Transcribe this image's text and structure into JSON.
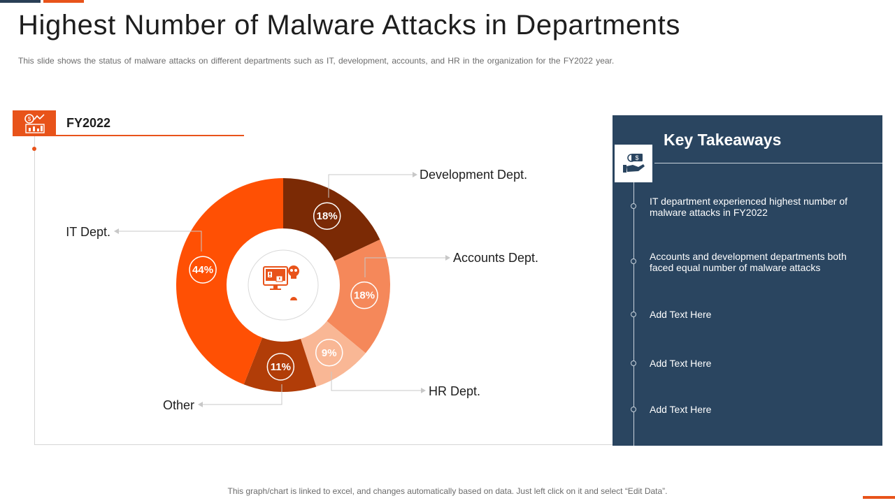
{
  "slide": {
    "title": "Highest Number of Malware Attacks in Departments",
    "subtitle": "This slide shows the status of malware attacks on different departments  such as IT,  development,  accounts,  and HR in the organization  for the FY2022 year.",
    "footer": "This graph/chart is linked to excel,  and changes automatically based on data. Just left click on it and select “Edit Data”."
  },
  "chart_header": {
    "label": "FY2022",
    "icon": "chart-report-icon"
  },
  "center_icon": "computer-virus-skull-icon",
  "chart_data": {
    "type": "pie",
    "variant": "donut",
    "title": "",
    "slices": [
      {
        "name": "Development Dept.",
        "value": 18,
        "label": "18%",
        "color": "#7b2a05"
      },
      {
        "name": "Accounts Dept.",
        "value": 18,
        "label": "18%",
        "color": "#f5885a"
      },
      {
        "name": "HR Dept.",
        "value": 9,
        "label": "9%",
        "color": "#f9b795"
      },
      {
        "name": "Other",
        "value": 11,
        "label": "11%",
        "color": "#b13d08"
      },
      {
        "name": "IT Dept.",
        "value": 44,
        "label": "44%",
        "color": "#ff5004"
      }
    ]
  },
  "takeaways": {
    "title": "Key Takeaways",
    "icon": "hand-money-icon",
    "items": [
      "IT department experienced highest number of malware attacks in FY2022",
      "Accounts and development departments both faced equal number of malware attacks",
      "Add Text Here",
      "Add Text Here",
      "Add Text Here"
    ]
  }
}
